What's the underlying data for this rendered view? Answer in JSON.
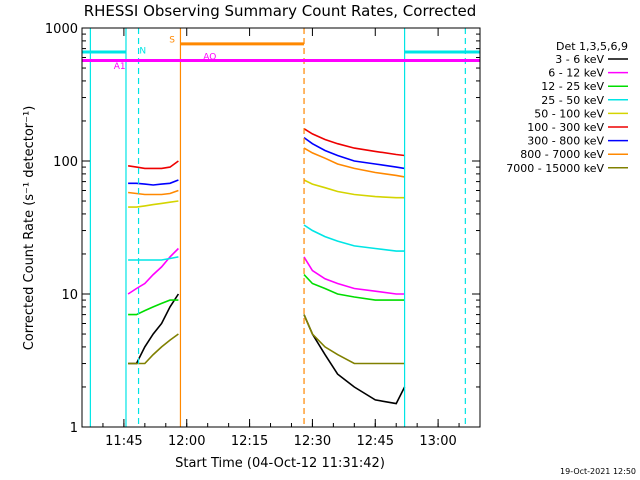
{
  "chart_data": {
    "type": "line",
    "title": "RHESSI Observing Summary Count Rates, Corrected",
    "xlabel": "Start Time (04-Oct-12 11:31:42)",
    "ylabel": "Corrected Count Rate (s⁻¹ detector⁻¹)",
    "x_range": [
      "11:35",
      "13:10"
    ],
    "y_scale": "log",
    "ylim": [
      1,
      1000
    ],
    "x_ticks": [
      "11:45",
      "12:00",
      "12:15",
      "12:30",
      "12:45",
      "13:00"
    ],
    "y_ticks": [
      "1",
      "10",
      "100",
      "1000"
    ],
    "footer": "19-Oct-2021 12:50",
    "legend": {
      "placement": "right",
      "title": "Det 1,3,5,6,9",
      "entries": [
        {
          "label": "3 - 6 keV",
          "color": "#000000"
        },
        {
          "label": "6 - 12 keV",
          "color": "#ff00ff"
        },
        {
          "label": "12 - 25 keV",
          "color": "#00dd00"
        },
        {
          "label": "25 - 50 keV",
          "color": "#00e5e5"
        },
        {
          "label": "50 - 100 keV",
          "color": "#d4d400"
        },
        {
          "label": "100 - 300 keV",
          "color": "#ee0000"
        },
        {
          "label": "300 - 800 keV",
          "color": "#0000ff"
        },
        {
          "label": "800 - 7000 keV",
          "color": "#ff8800"
        },
        {
          "label": "7000 - 15000 keV",
          "color": "#808000"
        }
      ]
    },
    "series": [
      {
        "name": "3 - 6 keV",
        "color": "#000000",
        "segments": [
          {
            "t": [
              "11:46:00",
              "11:48:00",
              "11:50:00",
              "11:52:00",
              "11:54:00",
              "11:56:00",
              "11:58:00"
            ],
            "v": [
              3,
              3,
              4,
              5,
              6,
              8,
              10
            ]
          },
          {
            "t": [
              "12:28:00",
              "12:30:00",
              "12:33:00",
              "12:36:00",
              "12:40:00",
              "12:45:00",
              "12:50:00",
              "12:52:00"
            ],
            "v": [
              7,
              5,
              3.5,
              2.5,
              2,
              1.6,
              1.5,
              2
            ]
          }
        ]
      },
      {
        "name": "6 - 12 keV",
        "color": "#ff00ff",
        "segments": [
          {
            "t": [
              "11:46:00",
              "11:48:00",
              "11:50:00",
              "11:52:00",
              "11:54:00",
              "11:56:00",
              "11:58:00"
            ],
            "v": [
              10,
              11,
              12,
              14,
              16,
              19,
              22
            ]
          },
          {
            "t": [
              "12:28:00",
              "12:30:00",
              "12:33:00",
              "12:36:00",
              "12:40:00",
              "12:45:00",
              "12:50:00",
              "12:52:00"
            ],
            "v": [
              19,
              15,
              13,
              12,
              11,
              10.5,
              10,
              10
            ]
          }
        ]
      },
      {
        "name": "12 - 25 keV",
        "color": "#00dd00",
        "segments": [
          {
            "t": [
              "11:46:00",
              "11:48:00",
              "11:50:00",
              "11:52:00",
              "11:54:00",
              "11:56:00",
              "11:58:00"
            ],
            "v": [
              7,
              7,
              7.5,
              8,
              8.5,
              9,
              9
            ]
          },
          {
            "t": [
              "12:28:00",
              "12:30:00",
              "12:33:00",
              "12:36:00",
              "12:40:00",
              "12:45:00",
              "12:50:00",
              "12:52:00"
            ],
            "v": [
              14,
              12,
              11,
              10,
              9.5,
              9,
              9,
              9
            ]
          }
        ]
      },
      {
        "name": "25 - 50 keV",
        "color": "#00e5e5",
        "segments": [
          {
            "t": [
              "11:46:00",
              "11:48:00",
              "11:50:00",
              "11:52:00",
              "11:54:00",
              "11:56:00",
              "11:58:00"
            ],
            "v": [
              18,
              18,
              18,
              18,
              18,
              18.5,
              19
            ]
          },
          {
            "t": [
              "12:28:00",
              "12:30:00",
              "12:33:00",
              "12:36:00",
              "12:40:00",
              "12:45:00",
              "12:50:00",
              "12:52:00"
            ],
            "v": [
              33,
              30,
              27,
              25,
              23,
              22,
              21,
              21
            ]
          }
        ]
      },
      {
        "name": "50 - 100 keV",
        "color": "#d4d400",
        "segments": [
          {
            "t": [
              "11:46:00",
              "11:48:00",
              "11:50:00",
              "11:52:00",
              "11:54:00",
              "11:56:00",
              "11:58:00"
            ],
            "v": [
              45,
              45,
              46,
              47,
              48,
              49,
              50
            ]
          },
          {
            "t": [
              "12:28:00",
              "12:30:00",
              "12:33:00",
              "12:36:00",
              "12:40:00",
              "12:45:00",
              "12:50:00",
              "12:52:00"
            ],
            "v": [
              72,
              67,
              63,
              59,
              56,
              54,
              53,
              53
            ]
          }
        ]
      },
      {
        "name": "100 - 300 keV",
        "color": "#ee0000",
        "segments": [
          {
            "t": [
              "11:46:00",
              "11:48:00",
              "11:50:00",
              "11:52:00",
              "11:54:00",
              "11:56:00",
              "11:58:00"
            ],
            "v": [
              92,
              90,
              88,
              88,
              88,
              90,
              100
            ]
          },
          {
            "t": [
              "12:28:00",
              "12:30:00",
              "12:33:00",
              "12:36:00",
              "12:40:00",
              "12:45:00",
              "12:50:00",
              "12:52:00"
            ],
            "v": [
              175,
              160,
              145,
              135,
              125,
              118,
              112,
              110
            ]
          }
        ]
      },
      {
        "name": "300 - 800 keV",
        "color": "#0000ff",
        "segments": [
          {
            "t": [
              "11:46:00",
              "11:48:00",
              "11:50:00",
              "11:52:00",
              "11:54:00",
              "11:56:00",
              "11:58:00"
            ],
            "v": [
              68,
              68,
              67,
              66,
              67,
              68,
              72
            ]
          },
          {
            "t": [
              "12:28:00",
              "12:30:00",
              "12:33:00",
              "12:36:00",
              "12:40:00",
              "12:45:00",
              "12:50:00",
              "12:52:00"
            ],
            "v": [
              150,
              135,
              120,
              110,
              100,
              95,
              90,
              88
            ]
          }
        ]
      },
      {
        "name": "800 - 7000 keV",
        "color": "#ff8800",
        "segments": [
          {
            "t": [
              "11:46:00",
              "11:48:00",
              "11:50:00",
              "11:52:00",
              "11:54:00",
              "11:56:00",
              "11:58:00"
            ],
            "v": [
              58,
              57,
              56,
              56,
              56,
              57,
              60
            ]
          },
          {
            "t": [
              "12:28:00",
              "12:30:00",
              "12:33:00",
              "12:36:00",
              "12:40:00",
              "12:45:00",
              "12:50:00",
              "12:52:00"
            ],
            "v": [
              125,
              115,
              105,
              95,
              88,
              82,
              78,
              76
            ]
          }
        ]
      },
      {
        "name": "7000 - 15000 keV",
        "color": "#808000",
        "segments": [
          {
            "t": [
              "11:46:00",
              "11:48:00",
              "11:50:00",
              "11:52:00",
              "11:54:00",
              "11:56:00",
              "11:58:00"
            ],
            "v": [
              3,
              3,
              3,
              3.5,
              4,
              4.5,
              5
            ]
          },
          {
            "t": [
              "12:28:00",
              "12:30:00",
              "12:33:00",
              "12:36:00",
              "12:40:00",
              "12:45:00",
              "12:50:00",
              "12:52:00"
            ],
            "v": [
              7,
              5,
              4,
              3.5,
              3,
              3,
              3,
              3
            ]
          }
        ]
      }
    ],
    "vertical_markers": [
      {
        "time": "11:37:00",
        "color": "#00e5e5",
        "style": "solid"
      },
      {
        "time": "11:45:30",
        "color": "#00e5e5",
        "style": "solid"
      },
      {
        "time": "11:48:30",
        "color": "#00e5e5",
        "style": "dashed"
      },
      {
        "time": "11:58:30",
        "color": "#ff8800",
        "style": "solid"
      },
      {
        "time": "12:28:00",
        "color": "#ff8800",
        "style": "dashed"
      },
      {
        "time": "12:52:00",
        "color": "#00e5e5",
        "style": "solid"
      },
      {
        "time": "13:06:30",
        "color": "#00e5e5",
        "style": "dashed"
      }
    ],
    "interval_bars": [
      {
        "label": "N",
        "color": "#00e5e5",
        "segments": [
          [
            "11:35:00",
            "11:45:30"
          ],
          [
            "12:52:00",
            "13:10:00"
          ]
        ],
        "level": 660
      },
      {
        "label": "S",
        "color": "#ff8800",
        "segments": [
          [
            "11:58:30",
            "12:28:00"
          ]
        ],
        "level": 760
      },
      {
        "label": "AO",
        "color": "#ff00ff",
        "segments": [
          [
            "11:35:00",
            "13:10:00"
          ]
        ],
        "level": 570
      },
      {
        "label": "A1",
        "color": "#ff00ff",
        "segments": [],
        "level": 570
      }
    ]
  }
}
